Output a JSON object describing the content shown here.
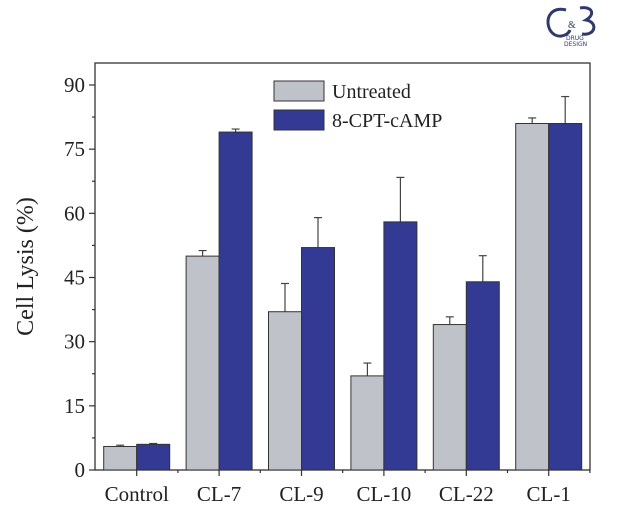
{
  "chart_data": {
    "type": "bar",
    "title": "",
    "xlabel": "",
    "ylabel": "Cell Lysis (%)",
    "ylim": [
      0,
      95
    ],
    "yticks": [
      0,
      15,
      30,
      45,
      60,
      75,
      90
    ],
    "categories": [
      "Control",
      "CL-7",
      "CL-9",
      "CL-10",
      "CL-22",
      "CL-1"
    ],
    "series": [
      {
        "name": "Untreated",
        "color": "#c0c2ca",
        "values": [
          5.5,
          50,
          37,
          22,
          34,
          81
        ],
        "errors": [
          0.3,
          1.3,
          6.6,
          3.0,
          1.8,
          1.3
        ]
      },
      {
        "name": "8-CPT-cAMP",
        "color": "#333a94",
        "values": [
          6,
          79,
          52,
          58,
          44,
          81
        ],
        "errors": [
          0.2,
          0.7,
          7.0,
          10.4,
          6.1,
          6.3
        ]
      }
    ],
    "legend_position": "top-center",
    "grid": false
  },
  "logo": {
    "text": "C&B DRUG DESIGN"
  }
}
